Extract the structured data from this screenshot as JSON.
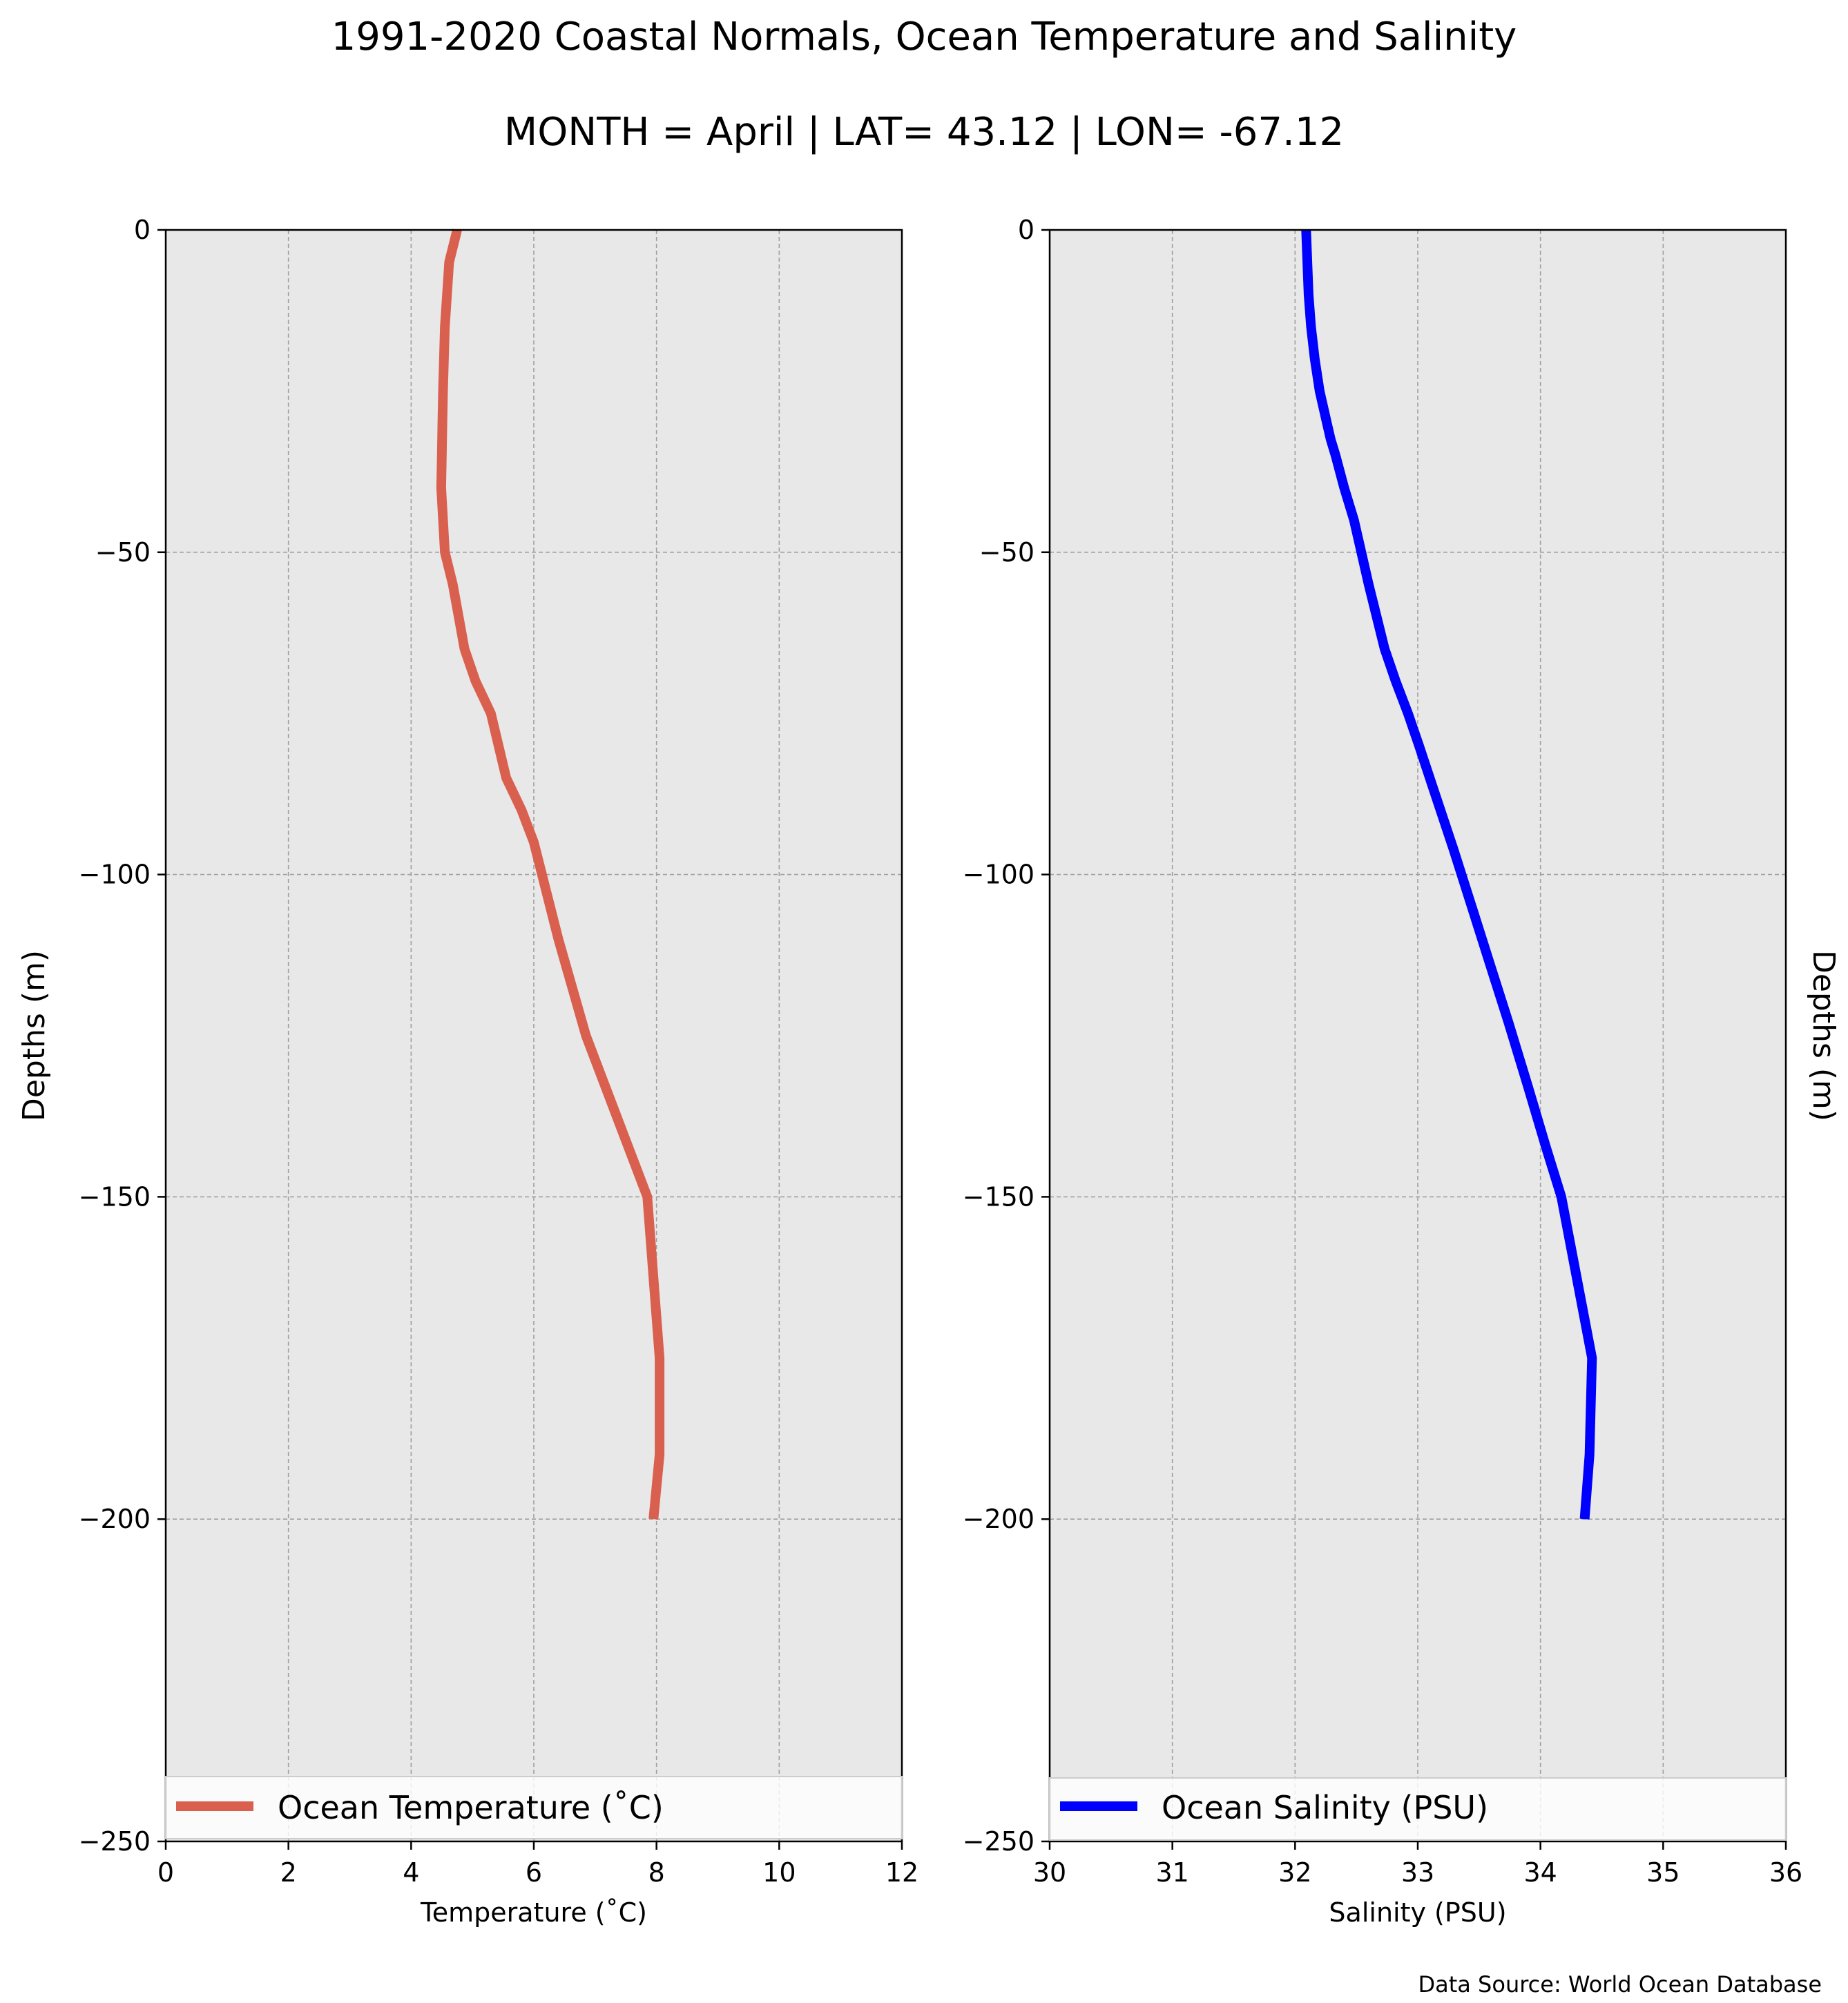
{
  "title": "1991-2020 Coastal Normals, Ocean Temperature and Salinity",
  "subtitle": "MONTH = April | LAT= 43.12 | LON= -67.12",
  "source": "Data Source: World Ocean Database",
  "colors": {
    "temperature": "#d9604f",
    "salinity": "#0000ff",
    "plot_bg": "#e8e8e8",
    "grid": "#a0a0a0"
  },
  "chart_data": [
    {
      "type": "line",
      "xlabel": "Temperature ($^\\circ$C)",
      "xlabel_display": "Temperature (˚C)",
      "ylabel": "Depths (m)",
      "xlim": [
        0,
        12
      ],
      "ylim": [
        -250,
        0
      ],
      "xticks": [
        0,
        2,
        4,
        6,
        8,
        10,
        12
      ],
      "yticks": [
        0,
        -50,
        -100,
        -150,
        -200,
        -250
      ],
      "grid": true,
      "legend_position": "bottom",
      "series": [
        {
          "name": "Ocean Temperature (˚C)",
          "x": [
            4.75,
            4.62,
            4.55,
            4.52,
            4.51,
            4.5,
            4.49,
            4.55,
            4.68,
            4.87,
            5.05,
            5.3,
            5.55,
            5.8,
            6.0,
            6.4,
            6.85,
            7.25,
            7.85,
            8.05,
            8.05,
            7.95
          ],
          "y": [
            0,
            -5,
            -15,
            -25,
            -30,
            -35,
            -40,
            -50,
            -55,
            -65,
            -70,
            -75,
            -85,
            -90,
            -95,
            -110,
            -125,
            -135,
            -150,
            -175,
            -190,
            -200
          ]
        }
      ]
    },
    {
      "type": "line",
      "xlabel": "Salinity (PSU)",
      "ylabel": "Depths (m)",
      "xlim": [
        30,
        36
      ],
      "ylim": [
        -250,
        0
      ],
      "xticks": [
        30,
        31,
        32,
        33,
        34,
        35,
        36
      ],
      "yticks": [
        0,
        -50,
        -100,
        -150,
        -200,
        -250
      ],
      "grid": true,
      "legend_position": "bottom",
      "series": [
        {
          "name": "Ocean Salinity (PSU)",
          "x": [
            32.09,
            32.1,
            32.11,
            32.13,
            32.16,
            32.2,
            32.26,
            32.29,
            32.33,
            32.4,
            32.48,
            32.6,
            32.73,
            32.82,
            32.92,
            33.01,
            33.15,
            33.29,
            33.44,
            33.59,
            33.74,
            33.9,
            34.04,
            34.17,
            34.42,
            34.4,
            34.36
          ],
          "y": [
            0,
            -5,
            -10,
            -15,
            -20,
            -25,
            -30,
            -32.5,
            -35,
            -40,
            -45,
            -55,
            -65,
            -70,
            -75,
            -80,
            -88,
            -96,
            -105,
            -114,
            -123,
            -133,
            -142,
            -150,
            -175,
            -190,
            -200
          ]
        }
      ]
    }
  ]
}
